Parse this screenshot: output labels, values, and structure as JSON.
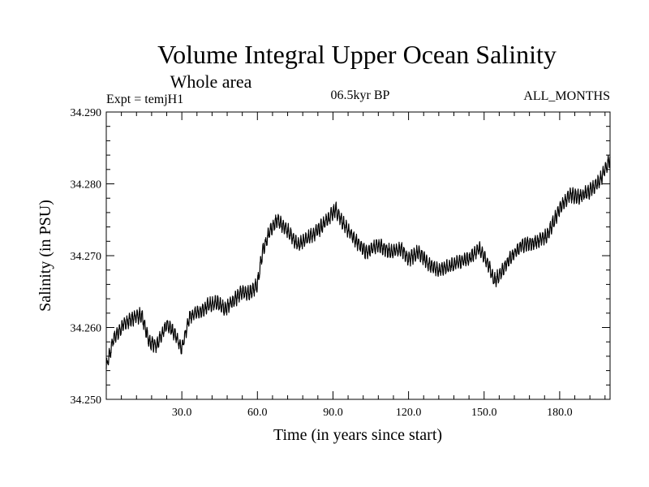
{
  "chart_data": {
    "type": "line",
    "title": "Volume Integral Upper Ocean Salinity",
    "subtitle": "Whole area",
    "experiment_label": "Expt = temjH1",
    "period_label": "06.5kyr BP",
    "months_label": "ALL_MONTHS",
    "xlabel": "Time (in years since start)",
    "ylabel": "Salinity (in PSU)",
    "xlim": [
      0,
      200
    ],
    "ylim": [
      34.25,
      34.29
    ],
    "x_ticks": [
      {
        "value": 30,
        "label": "30.0"
      },
      {
        "value": 60,
        "label": "60.0"
      },
      {
        "value": 90,
        "label": "90.0"
      },
      {
        "value": 120,
        "label": "120.0"
      },
      {
        "value": 150,
        "label": "150.0"
      },
      {
        "value": 180,
        "label": "180.0"
      }
    ],
    "y_ticks": [
      {
        "value": 34.25,
        "label": "34.250"
      },
      {
        "value": 34.26,
        "label": "34.260"
      },
      {
        "value": 34.27,
        "label": "34.270"
      },
      {
        "value": 34.28,
        "label": "34.280"
      },
      {
        "value": 34.29,
        "label": "34.290"
      }
    ],
    "series": [
      {
        "name": "Salinity",
        "color": "#000000",
        "trend_x": [
          0,
          3,
          7,
          10,
          14,
          17,
          20,
          24,
          27,
          30,
          33,
          37,
          40,
          44,
          47,
          50,
          54,
          57,
          60,
          62,
          65,
          68,
          72,
          76,
          80,
          84,
          88,
          91,
          94,
          98,
          103,
          108,
          113,
          117,
          120,
          124,
          128,
          132,
          136,
          140,
          144,
          148,
          152,
          154,
          156,
          160,
          165,
          170,
          175,
          180,
          184,
          188,
          192,
          196,
          200
        ],
        "trend_y": [
          34.2545,
          34.2585,
          34.2605,
          34.2612,
          34.2618,
          34.258,
          34.2575,
          34.2605,
          34.2592,
          34.257,
          34.2615,
          34.2622,
          34.263,
          34.2635,
          34.2625,
          34.2635,
          34.265,
          34.2648,
          34.266,
          34.2705,
          34.2735,
          34.275,
          34.2735,
          34.2715,
          34.2725,
          34.2735,
          34.275,
          34.2765,
          34.2745,
          34.2725,
          34.2705,
          34.2715,
          34.2705,
          34.271,
          34.2695,
          34.2705,
          34.2688,
          34.268,
          34.2685,
          34.2692,
          34.2695,
          34.271,
          34.2685,
          34.2665,
          34.2672,
          34.2695,
          34.2715,
          34.2718,
          34.2728,
          34.2765,
          34.2785,
          34.2782,
          34.279,
          34.2805,
          34.2835
        ],
        "annual_cycle_amplitude": 0.0016,
        "noise_amplitude": 0.0007,
        "samples_per_year": 12
      }
    ]
  }
}
